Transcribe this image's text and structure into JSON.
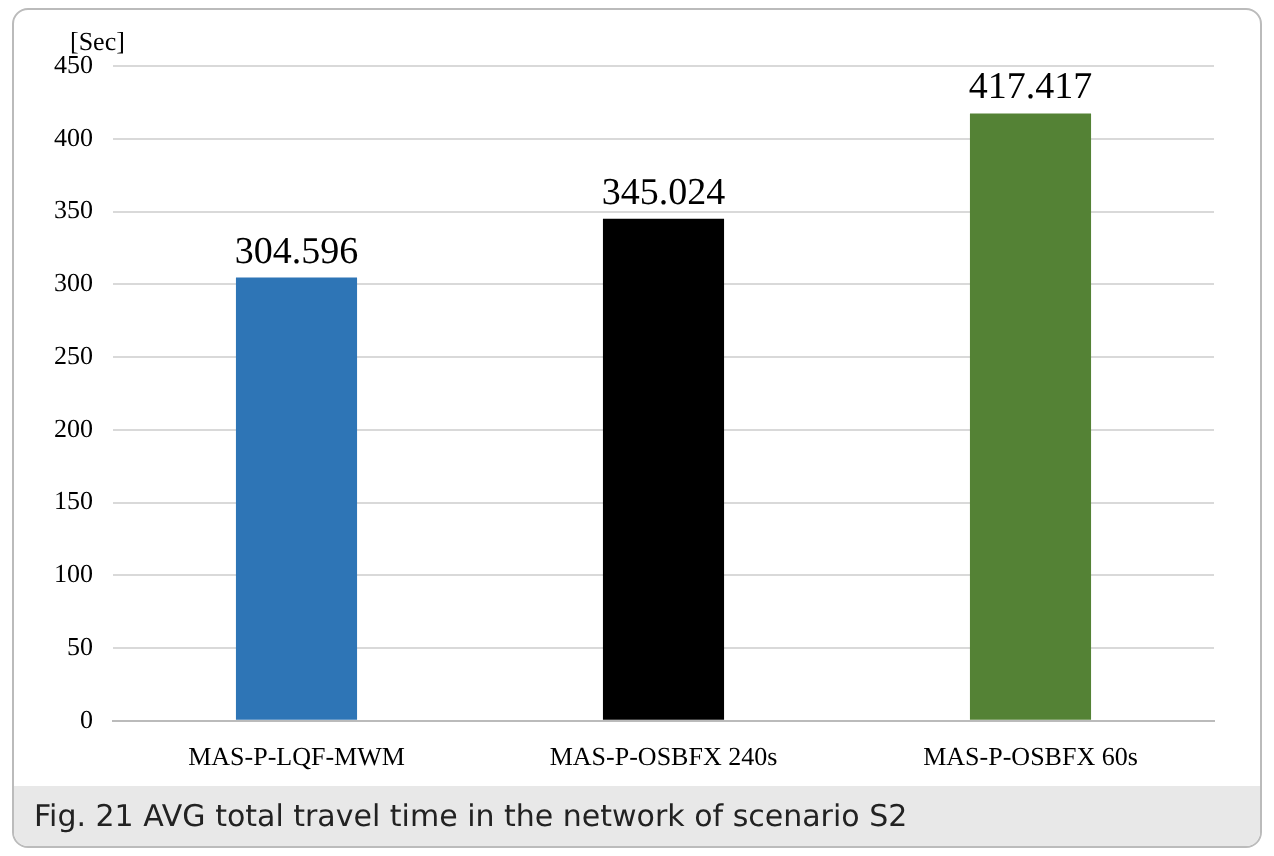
{
  "chart_data": {
    "type": "bar",
    "ylabel": "[Sec]",
    "categories": [
      "MAS-P-LQF-MWM",
      "MAS-P-OSBFX 240s",
      "MAS-P-OSBFX 60s"
    ],
    "values": [
      304.596,
      345.024,
      417.417
    ],
    "colors": [
      "#2e75b6",
      "#000000",
      "#548235"
    ],
    "ylim": [
      0,
      450
    ],
    "yticks": [
      0,
      50,
      100,
      150,
      200,
      250,
      300,
      350,
      400,
      450
    ],
    "grid": "y",
    "data_labels": true,
    "annotations": [
      "Fig. 21 AVG total travel time in the network of scenario S2"
    ]
  }
}
